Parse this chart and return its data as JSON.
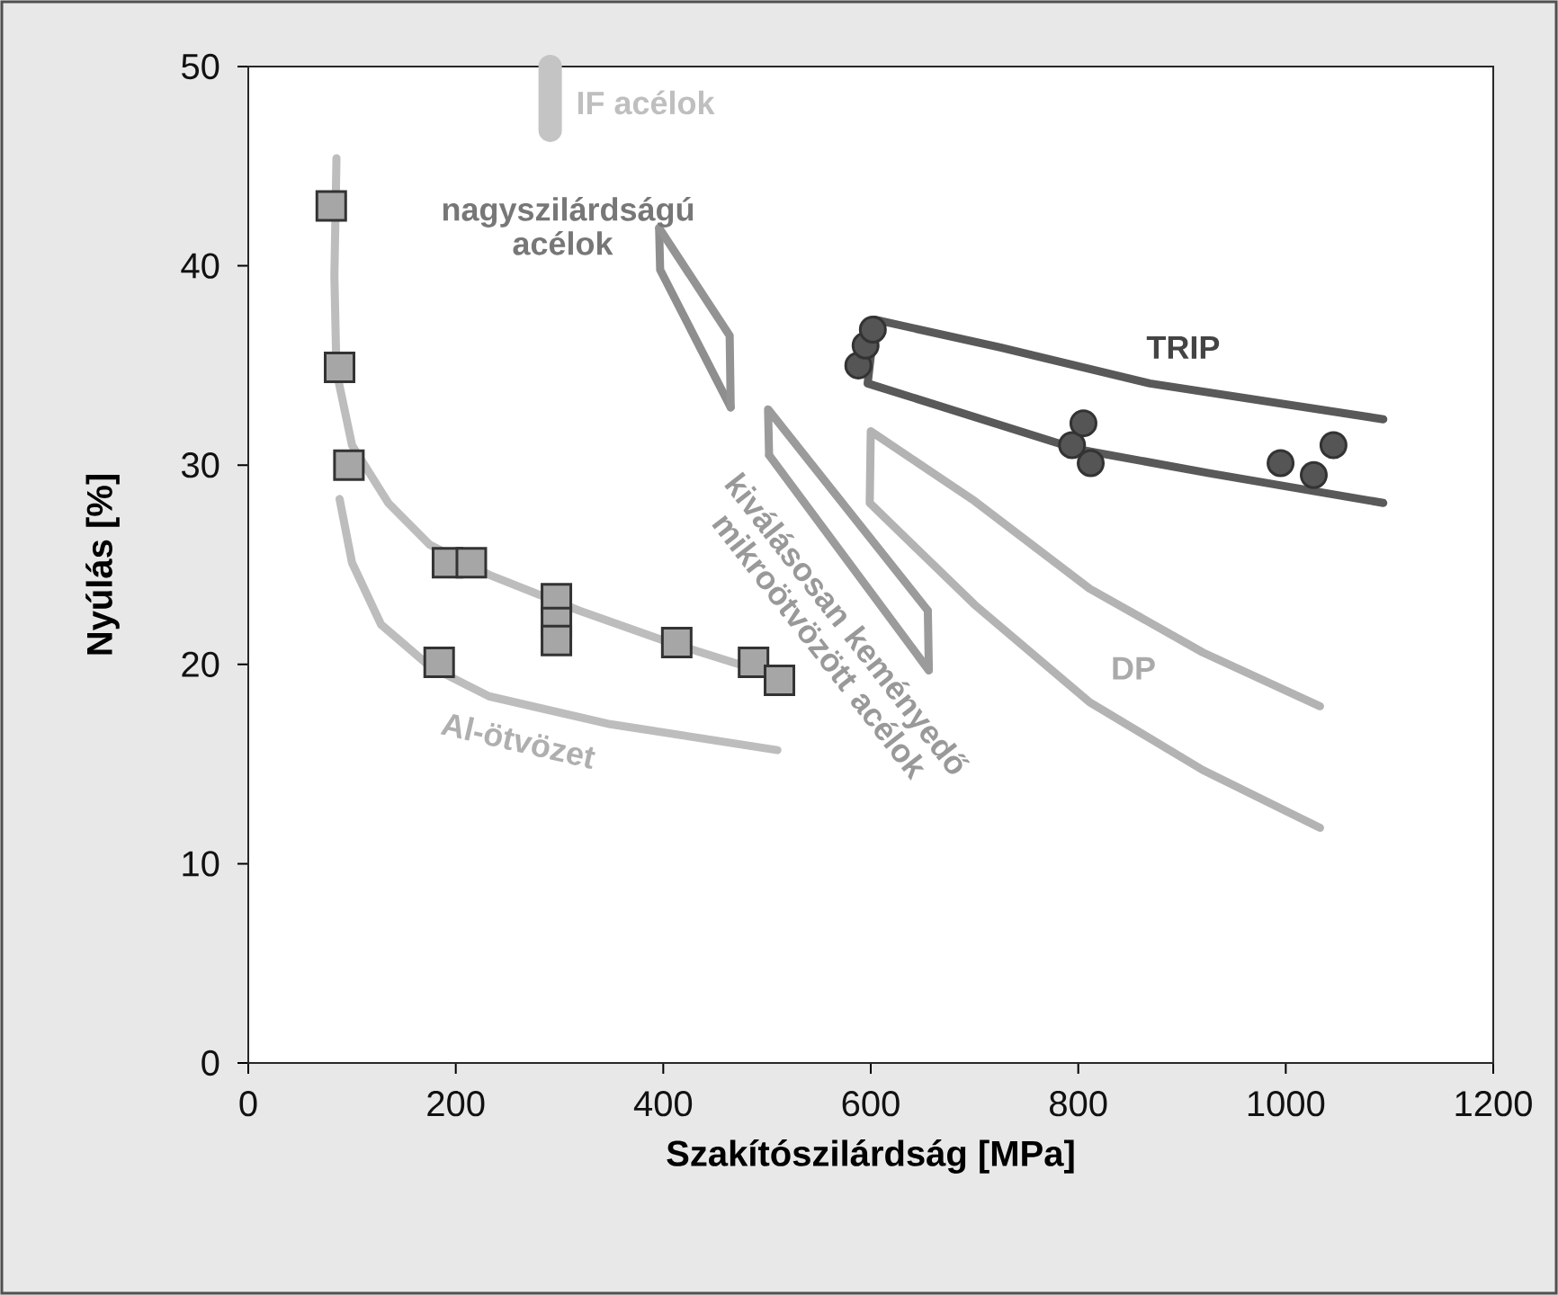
{
  "chart_data": {
    "type": "scatter",
    "xlabel": "Szakítószilárdság [MPa]",
    "ylabel": "Nyúlás  [%]",
    "xlim": [
      0,
      1200
    ],
    "ylim": [
      0,
      50
    ],
    "xticks": [
      0,
      200,
      400,
      600,
      800,
      1000,
      1200
    ],
    "yticks": [
      0,
      10,
      20,
      30,
      40,
      50
    ],
    "grid": false,
    "series": [
      {
        "marker": "square",
        "color": "#a6a6a6",
        "x": [
          80,
          88,
          97,
          184,
          192,
          215,
          297,
          297,
          297,
          413,
          487,
          512
        ],
        "values": [
          43.0,
          34.9,
          30.0,
          20.1,
          25.1,
          25.1,
          23.3,
          22.1,
          21.2,
          21.1,
          20.1,
          19.2
        ]
      },
      {
        "marker": "circle",
        "color": "#555555",
        "x": [
          588,
          595,
          602,
          794,
          805,
          812,
          995,
          1027,
          1046
        ],
        "values": [
          35.0,
          36.0,
          36.8,
          31.0,
          32.1,
          30.1,
          30.1,
          29.5,
          31.0
        ]
      },
      {
        "type": "line",
        "color": "#bdbdbd",
        "x": [
          85,
          83,
          85,
          100,
          135,
          175,
          232,
          319,
          406,
          492,
          522
        ],
        "values": [
          45.4,
          39.5,
          34.7,
          31.0,
          28.1,
          26.0,
          24.5,
          22.7,
          21.1,
          19.7,
          19.0
        ]
      },
      {
        "type": "line",
        "color": "#bdbdbd",
        "x": [
          88,
          100,
          128,
          175,
          232,
          349,
          510
        ],
        "values": [
          28.3,
          25.1,
          22.0,
          19.9,
          18.4,
          17.0,
          15.7
        ]
      },
      {
        "type": "line",
        "color": "#8e8e8e",
        "x": [
          396,
          397,
          465
        ],
        "values": [
          41.9,
          39.8,
          32.9
        ]
      },
      {
        "type": "line",
        "color": "#939393",
        "x": [
          396,
          464,
          465
        ],
        "values": [
          41.9,
          36.5,
          32.9
        ]
      },
      {
        "type": "line",
        "color": "#9b9b9b",
        "x": [
          502,
          501,
          655
        ],
        "values": [
          30.5,
          32.8,
          22.7
        ]
      },
      {
        "type": "line",
        "color": "#9b9b9b",
        "x": [
          502,
          656,
          655
        ],
        "values": [
          30.5,
          19.7,
          22.7
        ]
      },
      {
        "type": "line",
        "color": "#b3b3b3",
        "x": [
          1033,
          920,
          811,
          700,
          600,
          599,
          700,
          811,
          920,
          1033
        ],
        "values": [
          17.9,
          20.6,
          23.8,
          28.2,
          31.7,
          28.1,
          23.0,
          18.1,
          14.7,
          11.8
        ]
      },
      {
        "type": "line",
        "color": "#595959",
        "x": [
          1094,
          869,
          725,
          604,
          597,
          799,
          926,
          1094
        ],
        "values": [
          32.3,
          34.1,
          35.9,
          37.3,
          34.1,
          30.8,
          29.6,
          28.1
        ]
      },
      {
        "type": "line",
        "color": "#c4c4c4",
        "x": [
          291,
          291
        ],
        "values": [
          46.8,
          50.0
        ]
      }
    ],
    "annotations": [
      "IF acélok",
      "nagyszilárdságú acélok",
      "TRIP",
      "DP",
      "Al-ötvözet",
      "kiválásosan keményedő mikroötvözött acélok"
    ]
  }
}
